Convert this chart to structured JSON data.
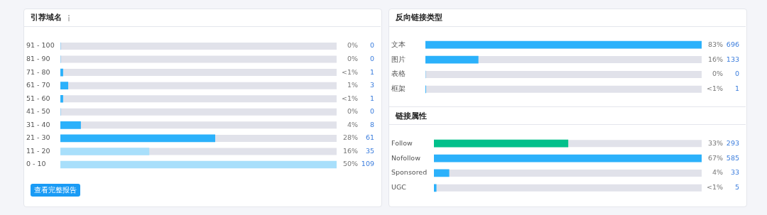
{
  "chart_data": [
    {
      "type": "bar",
      "orientation": "horizontal",
      "title": "引荐域名",
      "categories": [
        "91 - 100",
        "81 - 90",
        "71 - 80",
        "61 - 70",
        "51 - 60",
        "41 - 50",
        "31 - 40",
        "21 - 30",
        "11 - 20",
        "0 - 10"
      ],
      "values": [
        0,
        0,
        1,
        3,
        1,
        0,
        8,
        61,
        35,
        109
      ],
      "colors": [
        "#2bb1fb",
        "#2bb1fb",
        "#2bb1fb",
        "#2bb1fb",
        "#2bb1fb",
        "#2bb1fb",
        "#2bb1fb",
        "#2bb1fb",
        "#a8dffb",
        "#a8dffb"
      ],
      "data_labels": true,
      "tick_labels": "y",
      "annotations": [
        "查看完整报告",
        "0%",
        "0%",
        "<1%",
        "1%",
        "<1%",
        "0%",
        "4%",
        "28%",
        "16%",
        "50%"
      ]
    },
    {
      "type": "bar",
      "orientation": "horizontal",
      "title": "反向链接类型",
      "categories": [
        "文本",
        "图片",
        "表格",
        "框架"
      ],
      "values": [
        696,
        133,
        0,
        1
      ],
      "colors": [
        "#2bb1fb",
        "#2bb1fb",
        "#2bb1fb",
        "#2bb1fb"
      ],
      "data_labels": true,
      "tick_labels": "y",
      "annotations": [
        "83%",
        "16%",
        "0%",
        "<1%"
      ]
    },
    {
      "type": "bar",
      "orientation": "horizontal",
      "title": "链接属性",
      "categories": [
        "Follow",
        "Nofollow",
        "Sponsored",
        "UGC"
      ],
      "values": [
        293,
        585,
        33,
        5
      ],
      "colors": [
        "#00c08b",
        "#2bb1fb",
        "#2bb1fb",
        "#2bb1fb"
      ],
      "data_labels": true,
      "tick_labels": "y",
      "annotations": [
        "33%",
        "67%",
        "4%",
        "<1%"
      ]
    }
  ]
}
